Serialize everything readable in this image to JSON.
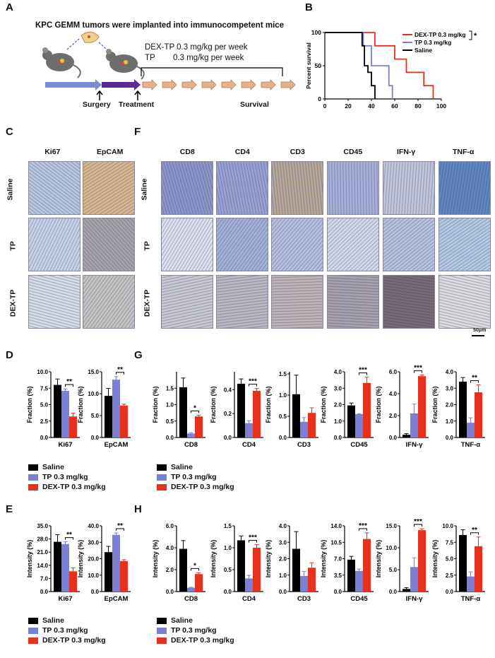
{
  "panel_labels": {
    "A": "A",
    "B": "B",
    "C": "C",
    "D": "D",
    "E": "E",
    "F": "F",
    "G": "G",
    "H": "H"
  },
  "panelA": {
    "title": "KPC GEMM tumors were implanted into immunocompetent mice",
    "dose1": "DEX-TP 0.3 mg/kg per week",
    "dose2": "TP        0.3 mg/kg per week",
    "surgery": "Surgery",
    "treatment": "Treatment",
    "survival": "Survival"
  },
  "colors": {
    "saline": "#000000",
    "tp": "#7b80d4",
    "dex": "#e8301c"
  },
  "survival_chart": {
    "type": "line",
    "ylabel": "Percent survival",
    "xticks": [
      "0",
      "20",
      "40",
      "60",
      "80",
      "100"
    ],
    "yticks": [
      "0",
      "50",
      "100"
    ],
    "xlim": [
      0,
      100
    ],
    "ylim": [
      0,
      100
    ],
    "legend": [
      "DEX-TP 0.3 mg/kg",
      "TP 0.3 mg/kg",
      "Saline"
    ],
    "significance": "*",
    "series": [
      {
        "name": "DEX-TP 0.3 mg/kg",
        "steps": [
          [
            0,
            100
          ],
          [
            43,
            100
          ],
          [
            43,
            80
          ],
          [
            53,
            80
          ],
          [
            53,
            80
          ],
          [
            60,
            80
          ],
          [
            60,
            60
          ],
          [
            70,
            60
          ],
          [
            70,
            40
          ],
          [
            85,
            40
          ],
          [
            85,
            20
          ],
          [
            93,
            20
          ],
          [
            93,
            0
          ]
        ]
      },
      {
        "name": "TP 0.3 mg/kg",
        "steps": [
          [
            0,
            100
          ],
          [
            33,
            100
          ],
          [
            33,
            80
          ],
          [
            40,
            80
          ],
          [
            40,
            50
          ],
          [
            50,
            50
          ],
          [
            50,
            50
          ],
          [
            55,
            50
          ],
          [
            55,
            20
          ],
          [
            58,
            20
          ],
          [
            58,
            0
          ]
        ]
      },
      {
        "name": "Saline",
        "steps": [
          [
            0,
            100
          ],
          [
            32,
            100
          ],
          [
            32,
            80
          ],
          [
            34,
            80
          ],
          [
            34,
            50
          ],
          [
            37,
            50
          ],
          [
            37,
            40
          ],
          [
            40,
            40
          ],
          [
            40,
            20
          ],
          [
            43,
            20
          ],
          [
            43,
            0
          ]
        ]
      }
    ]
  },
  "histology": {
    "C_cols": [
      "Ki67",
      "EpCAM"
    ],
    "F_cols": [
      "CD8",
      "CD4",
      "CD3",
      "CD45",
      "IFN-γ",
      "TNF-α"
    ],
    "rows": [
      "Saline",
      "TP",
      "DEX-TP"
    ],
    "scale_bar": "50μm"
  },
  "legend": [
    "Saline",
    "TP 0.3 mg/kg",
    "DEX-TP 0.3 mg/kg"
  ],
  "chart_data": [
    {
      "id": "D1",
      "type": "bar",
      "title": "",
      "categories": [
        "Ki67"
      ],
      "ylabel": "Fraction (%)",
      "ylim": [
        0,
        10
      ],
      "yticks": [
        "0.0",
        "2.5",
        "5.0",
        "7.5",
        "10.0"
      ],
      "series": [
        {
          "name": "Saline",
          "values": [
            8.0
          ],
          "err": [
            0.9
          ]
        },
        {
          "name": "TP 0.3 mg/kg",
          "values": [
            7.1
          ],
          "err": [
            0.3
          ]
        },
        {
          "name": "DEX-TP 0.3 mg/kg",
          "values": [
            3.2
          ],
          "err": [
            0.5
          ]
        }
      ],
      "sig": "**"
    },
    {
      "id": "D2",
      "type": "bar",
      "title": "",
      "categories": [
        "EpCAM"
      ],
      "ylabel": "Fraction (%)",
      "ylim": [
        0,
        15
      ],
      "yticks": [
        "0.0",
        "5.0",
        "10.0",
        "15.0"
      ],
      "series": [
        {
          "name": "Saline",
          "values": [
            9.5
          ],
          "err": [
            1.7
          ]
        },
        {
          "name": "TP 0.3 mg/kg",
          "values": [
            13.2
          ],
          "err": [
            0.7
          ]
        },
        {
          "name": "DEX-TP 0.3 mg/kg",
          "values": [
            7.3
          ],
          "err": [
            0.3
          ]
        }
      ],
      "sig": "**"
    },
    {
      "id": "G1",
      "type": "bar",
      "categories": [
        "CD8"
      ],
      "ylabel": "Fraction (%)",
      "ylim": [
        0,
        2.0
      ],
      "yticks": [
        "0.0",
        "0.5",
        "1.0",
        "1.5"
      ],
      "series": [
        {
          "name": "Saline",
          "values": [
            1.53
          ],
          "err": [
            0.28
          ]
        },
        {
          "name": "TP 0.3 mg/kg",
          "values": [
            0.12
          ],
          "err": [
            0.02
          ]
        },
        {
          "name": "DEX-TP 0.3 mg/kg",
          "values": [
            0.64
          ],
          "err": [
            0.04
          ]
        }
      ],
      "sig": "*"
    },
    {
      "id": "G2",
      "type": "bar",
      "categories": [
        "CD4"
      ],
      "ylabel": "Fraction (%)",
      "ylim": [
        0,
        0.55
      ],
      "yticks": [
        "0.0",
        "0.2",
        "0.4"
      ],
      "series": [
        {
          "name": "Saline",
          "values": [
            0.45
          ],
          "err": [
            0.04
          ]
        },
        {
          "name": "TP 0.3 mg/kg",
          "values": [
            0.12
          ],
          "err": [
            0.02
          ]
        },
        {
          "name": "DEX-TP 0.3 mg/kg",
          "values": [
            0.39
          ],
          "err": [
            0.02
          ]
        }
      ],
      "sig": "***"
    },
    {
      "id": "G3",
      "type": "bar",
      "categories": [
        "CD3"
      ],
      "ylabel": "Fraction (%)",
      "ylim": [
        0,
        1.55
      ],
      "yticks": [
        "0.0",
        "0.5",
        "1.0",
        "1.5"
      ],
      "series": [
        {
          "name": "Saline",
          "values": [
            1.02
          ],
          "err": [
            0.45
          ]
        },
        {
          "name": "TP 0.3 mg/kg",
          "values": [
            0.37
          ],
          "err": [
            0.1
          ]
        },
        {
          "name": "DEX-TP 0.3 mg/kg",
          "values": [
            0.58
          ],
          "err": [
            0.12
          ]
        }
      ],
      "sig": ""
    },
    {
      "id": "G4",
      "type": "bar",
      "categories": [
        "CD45"
      ],
      "ylabel": "Fraction (%)",
      "ylim": [
        0,
        4.0
      ],
      "yticks": [
        "0.0",
        "1.0",
        "2.0",
        "3.0",
        "4.0"
      ],
      "series": [
        {
          "name": "Saline",
          "values": [
            1.95
          ],
          "err": [
            0.15
          ]
        },
        {
          "name": "TP 0.3 mg/kg",
          "values": [
            1.42
          ],
          "err": [
            0.03
          ]
        },
        {
          "name": "DEX-TP 0.3 mg/kg",
          "values": [
            3.32
          ],
          "err": [
            0.35
          ]
        }
      ],
      "sig": "***"
    },
    {
      "id": "G5",
      "type": "bar",
      "categories": [
        "IFN-γ"
      ],
      "ylabel": "Fraction (%)",
      "ylim": [
        0,
        6.0
      ],
      "yticks": [
        "0.0",
        "2.0",
        "4.0",
        "6.0"
      ],
      "series": [
        {
          "name": "Saline",
          "values": [
            0.25
          ],
          "err": [
            0.1
          ]
        },
        {
          "name": "TP 0.3 mg/kg",
          "values": [
            2.2
          ],
          "err": [
            0.85
          ]
        },
        {
          "name": "DEX-TP 0.3 mg/kg",
          "values": [
            5.6
          ],
          "err": [
            0.1
          ]
        }
      ],
      "sig": "***"
    },
    {
      "id": "G6",
      "type": "bar",
      "categories": [
        "TNF-α"
      ],
      "ylabel": "Fraction (%)",
      "ylim": [
        0,
        4.0
      ],
      "yticks": [
        "0.0",
        "1.0",
        "2.0",
        "3.0",
        "4.0"
      ],
      "series": [
        {
          "name": "Saline",
          "values": [
            3.4
          ],
          "err": [
            0.25
          ]
        },
        {
          "name": "TP 0.3 mg/kg",
          "values": [
            0.9
          ],
          "err": [
            0.3
          ]
        },
        {
          "name": "DEX-TP 0.3 mg/kg",
          "values": [
            2.75
          ],
          "err": [
            0.45
          ]
        }
      ],
      "sig": "**"
    },
    {
      "id": "E1",
      "type": "bar",
      "categories": [
        "Ki67"
      ],
      "ylabel": "Intensity (%)",
      "ylim": [
        0,
        35
      ],
      "yticks": [
        "0.0",
        "7.0",
        "14.0",
        "21.0",
        "28.0",
        "35.0"
      ],
      "series": [
        {
          "name": "Saline",
          "values": [
            26.5
          ],
          "err": [
            3.8
          ]
        },
        {
          "name": "TP 0.3 mg/kg",
          "values": [
            25.3
          ],
          "err": [
            1.2
          ]
        },
        {
          "name": "DEX-TP 0.3 mg/kg",
          "values": [
            10.8
          ],
          "err": [
            1.8
          ]
        }
      ],
      "sig": "**"
    },
    {
      "id": "E2",
      "type": "bar",
      "categories": [
        "EpCAM"
      ],
      "ylabel": "Intensity (%)",
      "ylim": [
        0,
        40
      ],
      "yticks": [
        "0.0",
        "10.0",
        "20.0",
        "30.0",
        "40.0"
      ],
      "series": [
        {
          "name": "Saline",
          "values": [
            24.0
          ],
          "err": [
            3.5
          ]
        },
        {
          "name": "TP 0.3 mg/kg",
          "values": [
            34.5
          ],
          "err": [
            1.2
          ]
        },
        {
          "name": "DEX-TP 0.3 mg/kg",
          "values": [
            18.6
          ],
          "err": [
            0.8
          ]
        }
      ],
      "sig": "**"
    },
    {
      "id": "H1",
      "type": "bar",
      "categories": [
        "CD8"
      ],
      "ylabel": "Intensity (%)",
      "ylim": [
        0,
        6.0
      ],
      "yticks": [
        "0.0",
        "2.0",
        "4.0",
        "6.0"
      ],
      "series": [
        {
          "name": "Saline",
          "values": [
            3.9
          ],
          "err": [
            0.75
          ]
        },
        {
          "name": "TP 0.3 mg/kg",
          "values": [
            0.35
          ],
          "err": [
            0.04
          ]
        },
        {
          "name": "DEX-TP 0.3 mg/kg",
          "values": [
            1.6
          ],
          "err": [
            0.12
          ]
        }
      ],
      "sig": "*"
    },
    {
      "id": "H2",
      "type": "bar",
      "categories": [
        "CD4"
      ],
      "ylabel": "Intensity (%)",
      "ylim": [
        0,
        1.5
      ],
      "yticks": [
        "0.0",
        "0.5",
        "1.0",
        "1.5"
      ],
      "series": [
        {
          "name": "Saline",
          "values": [
            1.17
          ],
          "err": [
            0.1
          ]
        },
        {
          "name": "TP 0.3 mg/kg",
          "values": [
            0.3
          ],
          "err": [
            0.07
          ]
        },
        {
          "name": "DEX-TP 0.3 mg/kg",
          "values": [
            1.0
          ],
          "err": [
            0.07
          ]
        }
      ],
      "sig": "***"
    },
    {
      "id": "H3",
      "type": "bar",
      "categories": [
        "CD3"
      ],
      "ylabel": "Intensity (%)",
      "ylim": [
        0,
        4.0
      ],
      "yticks": [
        "0.0",
        "1.0",
        "2.0",
        "3.0",
        "4.0"
      ],
      "series": [
        {
          "name": "Saline",
          "values": [
            2.6
          ],
          "err": [
            1.05
          ]
        },
        {
          "name": "TP 0.3 mg/kg",
          "values": [
            0.95
          ],
          "err": [
            0.28
          ]
        },
        {
          "name": "DEX-TP 0.3 mg/kg",
          "values": [
            1.45
          ],
          "err": [
            0.3
          ]
        }
      ],
      "sig": ""
    },
    {
      "id": "H4",
      "type": "bar",
      "categories": [
        "CD45"
      ],
      "ylabel": "Intensity (%)",
      "ylim": [
        0,
        14.0
      ],
      "yticks": [
        "0.0",
        "3.5",
        "7.0",
        "10.5",
        "14.0"
      ],
      "series": [
        {
          "name": "Saline",
          "values": [
            6.8
          ],
          "err": [
            0.7
          ]
        },
        {
          "name": "TP 0.3 mg/kg",
          "values": [
            4.4
          ],
          "err": [
            0.4
          ]
        },
        {
          "name": "DEX-TP 0.3 mg/kg",
          "values": [
            11.2
          ],
          "err": [
            1.3
          ]
        }
      ],
      "sig": "***"
    },
    {
      "id": "H5",
      "type": "bar",
      "categories": [
        "IFN-γ"
      ],
      "ylabel": "Intensity (%)",
      "ylim": [
        0,
        15.0
      ],
      "yticks": [
        "0.0",
        "5.0",
        "10.0",
        "15.0"
      ],
      "series": [
        {
          "name": "Saline",
          "values": [
            0.6
          ],
          "err": [
            0.3
          ]
        },
        {
          "name": "TP 0.3 mg/kg",
          "values": [
            5.6
          ],
          "err": [
            2.1
          ]
        },
        {
          "name": "DEX-TP 0.3 mg/kg",
          "values": [
            14.0
          ],
          "err": [
            0.35
          ]
        }
      ],
      "sig": "***"
    },
    {
      "id": "H6",
      "type": "bar",
      "categories": [
        "TNF-α"
      ],
      "ylabel": "Intensity (%)",
      "ylim": [
        0,
        10.0
      ],
      "yticks": [
        "0.0",
        "2.5",
        "5.0",
        "7.5",
        "10.0"
      ],
      "series": [
        {
          "name": "Saline",
          "values": [
            8.6
          ],
          "err": [
            0.8
          ]
        },
        {
          "name": "TP 0.3 mg/kg",
          "values": [
            2.3
          ],
          "err": [
            0.7
          ]
        },
        {
          "name": "DEX-TP 0.3 mg/kg",
          "values": [
            6.9
          ],
          "err": [
            1.4
          ]
        }
      ],
      "sig": "**"
    }
  ]
}
